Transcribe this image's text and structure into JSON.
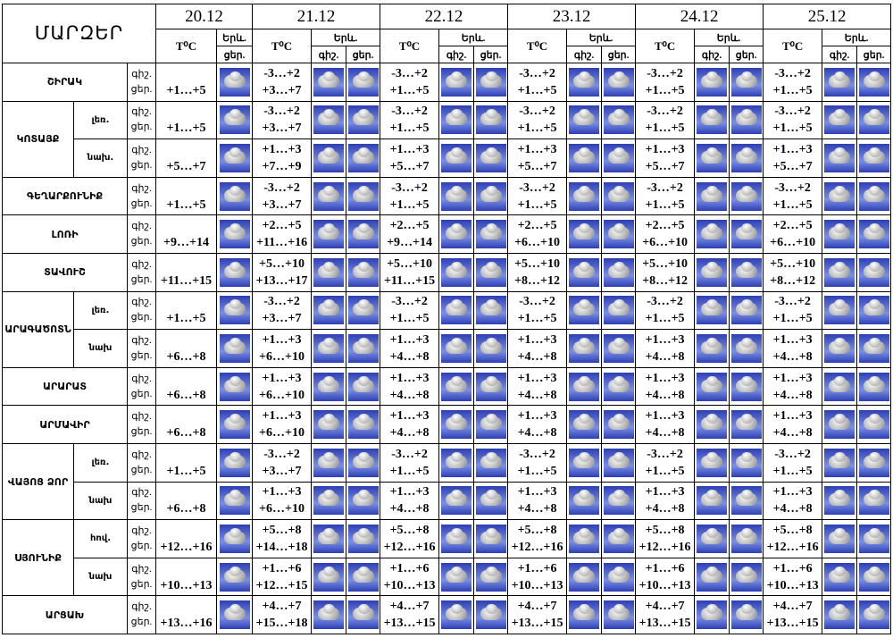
{
  "header": {
    "region_label": "ՄԱՐԶԵՐ",
    "dates": [
      "20.12",
      "21.12",
      "22.12",
      "23.12",
      "24.12",
      "25.12"
    ],
    "temp_label": "T⁰C",
    "yerevan_label": "Երև.",
    "night_label": "գիշ.",
    "day_label": "ցեր."
  },
  "regions": [
    {
      "name": "ՇԻՐԱԿ",
      "zones": [
        {
          "first_day": "+1…+5",
          "days": [
            {
              "night": "-3…+2",
              "day": "+3…+7"
            },
            {
              "night": "-3…+2",
              "day": "+1…+5"
            },
            {
              "night": "-3…+2",
              "day": "+1…+5"
            },
            {
              "night": "-3…+2",
              "day": "+1…+5"
            },
            {
              "night": "-3…+2",
              "day": "+1…+5"
            }
          ]
        }
      ]
    },
    {
      "name": "ԿՈՏԱՅՔ",
      "zones": [
        {
          "name": "լեռ.",
          "first_day": "+1…+5",
          "days": [
            {
              "night": "-3…+2",
              "day": "+3…+7"
            },
            {
              "night": "-3…+2",
              "day": "+1…+5"
            },
            {
              "night": "-3…+2",
              "day": "+1…+5"
            },
            {
              "night": "-3…+2",
              "day": "+1…+5"
            },
            {
              "night": "-3…+2",
              "day": "+1…+5"
            }
          ]
        },
        {
          "name": "նախ.",
          "first_day": "+5…+7",
          "days": [
            {
              "night": "+1…+3",
              "day": "+7…+9"
            },
            {
              "night": "+1…+3",
              "day": "+5…+7"
            },
            {
              "night": "+1…+3",
              "day": "+5…+7"
            },
            {
              "night": "+1…+3",
              "day": "+5…+7"
            },
            {
              "night": "+1…+3",
              "day": "+5…+7"
            }
          ]
        }
      ]
    },
    {
      "name": "ԳԵՂԱՐՔՈՒՆԻՔ",
      "zones": [
        {
          "first_day": "+1…+5",
          "days": [
            {
              "night": "-3…+2",
              "day": "+3…+7"
            },
            {
              "night": "-3…+2",
              "day": "+1…+5"
            },
            {
              "night": "-3…+2",
              "day": "+1…+5"
            },
            {
              "night": "-3…+2",
              "day": "+1…+5"
            },
            {
              "night": "-3…+2",
              "day": "+1…+5"
            }
          ]
        }
      ]
    },
    {
      "name": "ԼՈՌԻ",
      "zones": [
        {
          "first_day": "+9…+14",
          "days": [
            {
              "night": "+2…+5",
              "day": "+11…+16"
            },
            {
              "night": "+2…+5",
              "day": "+9…+14"
            },
            {
              "night": "+2…+5",
              "day": "+6…+10"
            },
            {
              "night": "+2…+5",
              "day": "+6…+10"
            },
            {
              "night": "+2…+5",
              "day": "+6…+10"
            }
          ]
        }
      ]
    },
    {
      "name": "ՏԱՎՈՒՇ",
      "zones": [
        {
          "first_day": "+11…+15",
          "days": [
            {
              "night": "+5…+10",
              "day": "+13…+17"
            },
            {
              "night": "+5…+10",
              "day": "+11…+15"
            },
            {
              "night": "+5…+10",
              "day": "+8…+12"
            },
            {
              "night": "+5…+10",
              "day": "+8…+12"
            },
            {
              "night": "+5…+10",
              "day": "+8…+12"
            }
          ]
        }
      ]
    },
    {
      "name": "ԱՐԱԳԱԾՈՏՆ",
      "zones": [
        {
          "name": "լեռ.",
          "first_day": "+1…+5",
          "days": [
            {
              "night": "-3…+2",
              "day": "+3…+7"
            },
            {
              "night": "-3…+2",
              "day": "+1…+5"
            },
            {
              "night": "-3…+2",
              "day": "+1…+5"
            },
            {
              "night": "-3…+2",
              "day": "+1…+5"
            },
            {
              "night": "-3…+2",
              "day": "+1…+5"
            }
          ]
        },
        {
          "name": "նախ",
          "first_day": "+6…+8",
          "days": [
            {
              "night": "+1…+3",
              "day": "+6…+10"
            },
            {
              "night": "+1…+3",
              "day": "+4…+8"
            },
            {
              "night": "+1…+3",
              "day": "+4…+8"
            },
            {
              "night": "+1…+3",
              "day": "+4…+8"
            },
            {
              "night": "+1…+3",
              "day": "+4…+8"
            }
          ]
        }
      ]
    },
    {
      "name": "ԱՐԱՐԱՏ",
      "zones": [
        {
          "first_day": "+6…+8",
          "days": [
            {
              "night": "+1…+3",
              "day": "+6…+10"
            },
            {
              "night": "+1…+3",
              "day": "+4…+8"
            },
            {
              "night": "+1…+3",
              "day": "+4…+8"
            },
            {
              "night": "+1…+3",
              "day": "+4…+8"
            },
            {
              "night": "+1…+3",
              "day": "+4…+8"
            }
          ]
        }
      ]
    },
    {
      "name": "ԱՐՄԱՎԻՐ",
      "zones": [
        {
          "first_day": "+6…+8",
          "days": [
            {
              "night": "+1…+3",
              "day": "+6…+10"
            },
            {
              "night": "+1…+3",
              "day": "+4…+8"
            },
            {
              "night": "+1…+3",
              "day": "+4…+8"
            },
            {
              "night": "+1…+3",
              "day": "+4…+8"
            },
            {
              "night": "+1…+3",
              "day": "+4…+8"
            }
          ]
        }
      ]
    },
    {
      "name": "ՎԱՅՈՑ ՁՈՐ",
      "zones": [
        {
          "name": "լեռ.",
          "first_day": "+1…+5",
          "days": [
            {
              "night": "-3…+2",
              "day": "+3…+7"
            },
            {
              "night": "-3…+2",
              "day": "+1…+5"
            },
            {
              "night": "-3…+2",
              "day": "+1…+5"
            },
            {
              "night": "-3…+2",
              "day": "+1…+5"
            },
            {
              "night": "-3…+2",
              "day": "+1…+5"
            }
          ]
        },
        {
          "name": "նախ",
          "first_day": "+6…+8",
          "days": [
            {
              "night": "+1…+3",
              "day": "+6…+10"
            },
            {
              "night": "+1…+3",
              "day": "+4…+8"
            },
            {
              "night": "+1…+3",
              "day": "+4…+8"
            },
            {
              "night": "+1…+3",
              "day": "+4…+8"
            },
            {
              "night": "+1…+3",
              "day": "+4…+8"
            }
          ]
        }
      ]
    },
    {
      "name": "ՍՅՈՒՆԻՔ",
      "zones": [
        {
          "name": "հով.",
          "first_day": "+12…+16",
          "days": [
            {
              "night": "+5…+8",
              "day": "+14…+18"
            },
            {
              "night": "+5…+8",
              "day": "+12…+16"
            },
            {
              "night": "+5…+8",
              "day": "+12…+16"
            },
            {
              "night": "+5…+8",
              "day": "+12…+16"
            },
            {
              "night": "+5…+8",
              "day": "+12…+16"
            }
          ]
        },
        {
          "name": "նախ",
          "first_day": "+10…+13",
          "days": [
            {
              "night": "+1…+6",
              "day": "+12…+15"
            },
            {
              "night": "+1…+6",
              "day": "+10…+13"
            },
            {
              "night": "+1…+6",
              "day": "+10…+13"
            },
            {
              "night": "+1…+6",
              "day": "+10…+13"
            },
            {
              "night": "+1…+6",
              "day": "+10…+13"
            }
          ]
        }
      ]
    },
    {
      "name": "ԱՐՑԱԽ",
      "zones": [
        {
          "first_day": "+13…+16",
          "days": [
            {
              "night": "+4…+7",
              "day": "+15…+18"
            },
            {
              "night": "+4…+7",
              "day": "+13…+15"
            },
            {
              "night": "+4…+7",
              "day": "+13…+15"
            },
            {
              "night": "+4…+7",
              "day": "+13…+15"
            },
            {
              "night": "+4…+7",
              "day": "+13…+15"
            }
          ]
        }
      ]
    }
  ]
}
